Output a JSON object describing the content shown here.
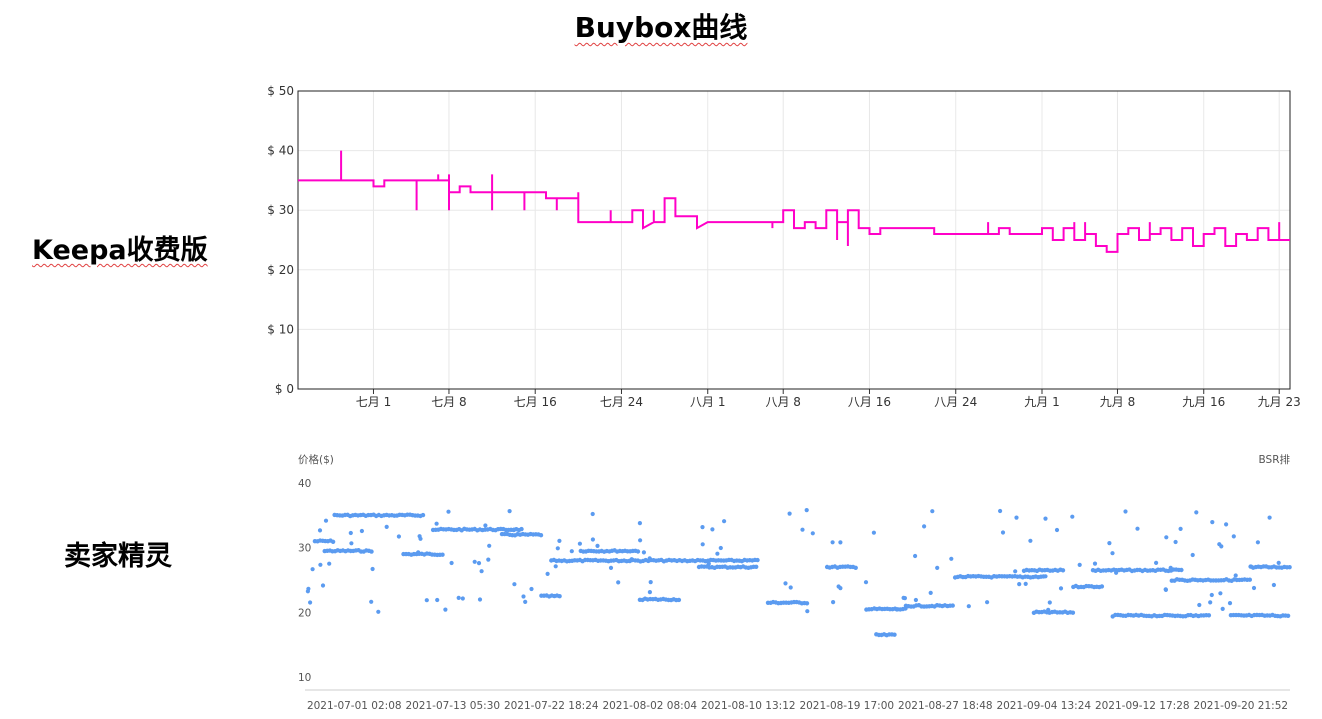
{
  "title": "Buybox曲线",
  "labels": {
    "keepa": "Keepa收费版",
    "sellersprite": "卖家精灵"
  },
  "colors": {
    "keepa_line": "#ff00c8",
    "seller_points": "#5b9bf0",
    "grid": "#e8e8e8"
  },
  "chart_data": [
    {
      "type": "line",
      "name": "keepa",
      "ylim": [
        0,
        50
      ],
      "xlim": [
        -7,
        85
      ],
      "y_ticks": [
        {
          "label": "$ 50",
          "value": 50
        },
        {
          "label": "$ 40",
          "value": 40
        },
        {
          "label": "$ 30",
          "value": 30
        },
        {
          "label": "$ 20",
          "value": 20
        },
        {
          "label": "$ 10",
          "value": 10
        },
        {
          "label": "$ 0",
          "value": 0
        }
      ],
      "x_ticks": [
        {
          "label": "七月 1",
          "day": 0
        },
        {
          "label": "七月 8",
          "day": 7
        },
        {
          "label": "七月 16",
          "day": 15
        },
        {
          "label": "七月 24",
          "day": 23
        },
        {
          "label": "八月 1",
          "day": 31
        },
        {
          "label": "八月 8",
          "day": 38
        },
        {
          "label": "八月 16",
          "day": 46
        },
        {
          "label": "八月 24",
          "day": 54
        },
        {
          "label": "九月 1",
          "day": 62
        },
        {
          "label": "九月 8",
          "day": 69
        },
        {
          "label": "九月 16",
          "day": 77
        },
        {
          "label": "九月 23",
          "day": 84
        }
      ],
      "series": [
        {
          "points": [
            [
              -7,
              35
            ],
            [
              -3,
              35
            ],
            [
              -3,
              40
            ],
            [
              -3,
              35
            ],
            [
              0,
              35
            ],
            [
              0,
              34
            ],
            [
              1,
              34
            ],
            [
              1,
              35
            ],
            [
              3,
              35
            ],
            [
              4,
              35
            ],
            [
              4,
              30
            ],
            [
              4,
              35
            ],
            [
              5,
              35
            ],
            [
              6,
              35
            ],
            [
              6,
              36
            ],
            [
              6,
              35
            ],
            [
              7,
              35
            ],
            [
              7,
              36
            ],
            [
              7,
              30
            ],
            [
              7,
              33
            ],
            [
              8,
              33
            ],
            [
              8,
              34
            ],
            [
              9,
              34
            ],
            [
              9,
              33
            ],
            [
              11,
              33
            ],
            [
              11,
              36
            ],
            [
              11,
              30
            ],
            [
              11,
              33
            ],
            [
              13,
              33
            ],
            [
              14,
              33
            ],
            [
              14,
              30
            ],
            [
              14,
              33
            ],
            [
              16,
              33
            ],
            [
              16,
              32
            ],
            [
              17,
              32
            ],
            [
              17,
              30
            ],
            [
              17,
              32
            ],
            [
              18,
              32
            ],
            [
              19,
              32
            ],
            [
              19,
              33
            ],
            [
              19,
              28
            ],
            [
              22,
              28
            ],
            [
              22,
              30
            ],
            [
              22,
              28
            ],
            [
              24,
              28
            ],
            [
              24,
              30
            ],
            [
              25,
              30
            ],
            [
              25,
              28
            ],
            [
              25,
              27
            ],
            [
              26,
              28
            ],
            [
              26,
              30
            ],
            [
              26,
              28
            ],
            [
              27,
              28
            ],
            [
              27,
              32
            ],
            [
              28,
              32
            ],
            [
              28,
              29
            ],
            [
              30,
              29
            ],
            [
              30,
              28
            ],
            [
              30,
              27
            ],
            [
              31,
              28
            ],
            [
              35,
              28
            ],
            [
              37,
              28
            ],
            [
              37,
              27
            ],
            [
              37,
              28
            ],
            [
              38,
              28
            ],
            [
              38,
              30
            ],
            [
              39,
              30
            ],
            [
              39,
              27
            ],
            [
              40,
              27
            ],
            [
              40,
              28
            ],
            [
              41,
              28
            ],
            [
              41,
              27
            ],
            [
              42,
              27
            ],
            [
              42,
              30
            ],
            [
              43,
              30
            ],
            [
              43,
              25
            ],
            [
              43,
              28
            ],
            [
              44,
              28
            ],
            [
              44,
              24
            ],
            [
              44,
              30
            ],
            [
              45,
              30
            ],
            [
              45,
              27
            ],
            [
              46,
              27
            ],
            [
              46,
              26
            ],
            [
              47,
              26
            ],
            [
              47,
              27
            ],
            [
              48,
              27
            ],
            [
              52,
              27
            ],
            [
              52,
              26
            ],
            [
              53,
              26
            ],
            [
              54,
              26
            ],
            [
              55,
              26
            ],
            [
              56,
              26
            ],
            [
              57,
              26
            ],
            [
              57,
              28
            ],
            [
              57,
              26
            ],
            [
              58,
              26
            ],
            [
              58,
              27
            ],
            [
              59,
              27
            ],
            [
              59,
              26
            ],
            [
              62,
              26
            ],
            [
              62,
              27
            ],
            [
              63,
              27
            ],
            [
              63,
              25
            ],
            [
              64,
              25
            ],
            [
              64,
              27
            ],
            [
              65,
              27
            ],
            [
              65,
              28
            ],
            [
              65,
              25
            ],
            [
              66,
              25
            ],
            [
              66,
              28
            ],
            [
              66,
              26
            ],
            [
              67,
              26
            ],
            [
              67,
              24
            ],
            [
              68,
              24
            ],
            [
              68,
              23
            ],
            [
              69,
              23
            ],
            [
              69,
              26
            ],
            [
              70,
              26
            ],
            [
              70,
              27
            ],
            [
              71,
              27
            ],
            [
              71,
              25
            ],
            [
              72,
              25
            ],
            [
              72,
              28
            ],
            [
              72,
              26
            ],
            [
              73,
              26
            ],
            [
              73,
              27
            ],
            [
              74,
              27
            ],
            [
              74,
              25
            ],
            [
              75,
              25
            ],
            [
              75,
              27
            ],
            [
              76,
              27
            ],
            [
              76,
              24
            ],
            [
              77,
              24
            ],
            [
              77,
              26
            ],
            [
              78,
              26
            ],
            [
              78,
              27
            ],
            [
              79,
              27
            ],
            [
              79,
              24
            ],
            [
              80,
              24
            ],
            [
              80,
              26
            ],
            [
              81,
              26
            ],
            [
              81,
              25
            ],
            [
              82,
              25
            ],
            [
              82,
              27
            ],
            [
              83,
              27
            ],
            [
              83,
              25
            ],
            [
              84,
              25
            ],
            [
              84,
              28
            ],
            [
              84,
              25
            ],
            [
              85,
              25
            ]
          ]
        }
      ]
    },
    {
      "type": "scatter",
      "name": "sellerprite",
      "y_axis_label": "价格($)",
      "y2_axis_label": "BSR排",
      "ylim": [
        8,
        40
      ],
      "xlim": [
        0,
        100
      ],
      "y_ticks": [
        {
          "label": "40",
          "value": 40
        },
        {
          "label": "30",
          "value": 30
        },
        {
          "label": "20",
          "value": 20
        },
        {
          "label": "10",
          "value": 10
        }
      ],
      "x_ticks": [
        {
          "label": "2021-07-01 02:08",
          "pos": 5
        },
        {
          "label": "2021-07-13 05:30",
          "pos": 15
        },
        {
          "label": "2021-07-22 18:24",
          "pos": 25
        },
        {
          "label": "2021-08-02 08:04",
          "pos": 35
        },
        {
          "label": "2021-08-10 13:12",
          "pos": 45
        },
        {
          "label": "2021-08-19 17:00",
          "pos": 55
        },
        {
          "label": "2021-08-27 18:48",
          "pos": 65
        },
        {
          "label": "2021-09-04 13:24",
          "pos": 75
        },
        {
          "label": "2021-09-12 17:28",
          "pos": 85
        },
        {
          "label": "2021-09-20 21:52",
          "pos": 95
        }
      ],
      "clusters": [
        {
          "x0": 1,
          "x1": 3,
          "y": 31
        },
        {
          "x0": 2,
          "x1": 7,
          "y": 29.5
        },
        {
          "x0": 3,
          "x1": 12,
          "y": 35
        },
        {
          "x0": 10,
          "x1": 14,
          "y": 29
        },
        {
          "x0": 13,
          "x1": 22,
          "y": 32.8
        },
        {
          "x0": 20,
          "x1": 24,
          "y": 32
        },
        {
          "x0": 24,
          "x1": 26,
          "y": 22.5
        },
        {
          "x0": 25,
          "x1": 33,
          "y": 28
        },
        {
          "x0": 28,
          "x1": 34,
          "y": 29.5
        },
        {
          "x0": 33,
          "x1": 46,
          "y": 28
        },
        {
          "x0": 34,
          "x1": 38,
          "y": 22
        },
        {
          "x0": 40,
          "x1": 46,
          "y": 27
        },
        {
          "x0": 47,
          "x1": 51,
          "y": 21.5
        },
        {
          "x0": 53,
          "x1": 56,
          "y": 27
        },
        {
          "x0": 57,
          "x1": 61,
          "y": 20.5
        },
        {
          "x0": 58,
          "x1": 60,
          "y": 16.5
        },
        {
          "x0": 61,
          "x1": 66,
          "y": 21
        },
        {
          "x0": 66,
          "x1": 75,
          "y": 25.5
        },
        {
          "x0": 73,
          "x1": 77,
          "y": 26.5
        },
        {
          "x0": 74,
          "x1": 78,
          "y": 20
        },
        {
          "x0": 78,
          "x1": 81,
          "y": 24
        },
        {
          "x0": 80,
          "x1": 89,
          "y": 26.5
        },
        {
          "x0": 82,
          "x1": 92,
          "y": 19.5
        },
        {
          "x0": 88,
          "x1": 96,
          "y": 25
        },
        {
          "x0": 94,
          "x1": 100,
          "y": 19.5
        },
        {
          "x0": 96,
          "x1": 100,
          "y": 27
        }
      ]
    }
  ]
}
